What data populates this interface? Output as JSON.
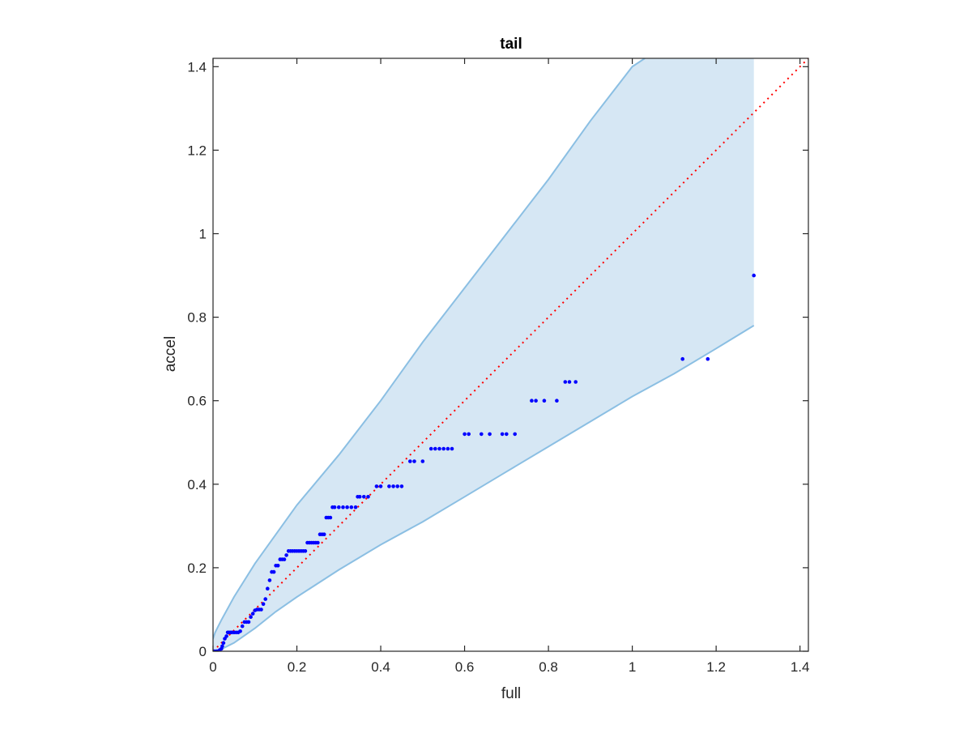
{
  "chart_data": {
    "type": "scatter",
    "title": "tail",
    "xlabel": "full",
    "ylabel": "accel",
    "xlim": [
      0,
      1.42
    ],
    "ylim": [
      0,
      1.42
    ],
    "xticks": [
      0,
      0.2,
      0.4,
      0.6,
      0.8,
      1,
      1.2,
      1.4
    ],
    "yticks": [
      0,
      0.2,
      0.4,
      0.6,
      0.8,
      1,
      1.2,
      1.4
    ],
    "xtick_labels": [
      "0",
      "0.2",
      "0.4",
      "0.6",
      "0.8",
      "1",
      "1.2",
      "1.4"
    ],
    "ytick_labels": [
      "0",
      "0.2",
      "0.4",
      "0.6",
      "0.8",
      "1",
      "1.2",
      "1.4"
    ],
    "grid": false,
    "reference_line": {
      "style": "dotted",
      "color": "#ff0000",
      "x": [
        0,
        1.42
      ],
      "y": [
        0,
        1.42
      ]
    },
    "confidence_band": {
      "fill_color": "#d6e7f4",
      "edge_color": "#8bbfe3",
      "upper": {
        "x": [
          0,
          0.005,
          0.01,
          0.02,
          0.05,
          0.1,
          0.15,
          0.2,
          0.3,
          0.4,
          0.5,
          0.6,
          0.7,
          0.8,
          0.9,
          1.0,
          1.03
        ],
        "y": [
          0.03,
          0.045,
          0.055,
          0.075,
          0.13,
          0.21,
          0.28,
          0.35,
          0.47,
          0.6,
          0.74,
          0.87,
          1.0,
          1.13,
          1.27,
          1.4,
          1.42
        ]
      },
      "right_edge_x": 1.29,
      "lower": {
        "x": [
          0,
          0.02,
          0.05,
          0.1,
          0.15,
          0.2,
          0.3,
          0.4,
          0.5,
          0.6,
          0.7,
          0.8,
          0.9,
          1.0,
          1.1,
          1.2,
          1.29
        ],
        "y": [
          0,
          0.005,
          0.02,
          0.055,
          0.095,
          0.13,
          0.195,
          0.255,
          0.31,
          0.37,
          0.43,
          0.49,
          0.55,
          0.61,
          0.665,
          0.725,
          0.78
        ]
      }
    },
    "series": [
      {
        "marker_color": "#0000ff",
        "x": [
          0.003,
          0.008,
          0.012,
          0.016,
          0.02,
          0.022,
          0.025,
          0.028,
          0.032,
          0.035,
          0.038,
          0.042,
          0.045,
          0.05,
          0.055,
          0.06,
          0.065,
          0.07,
          0.075,
          0.08,
          0.085,
          0.09,
          0.095,
          0.1,
          0.105,
          0.11,
          0.115,
          0.12,
          0.125,
          0.13,
          0.135,
          0.14,
          0.145,
          0.15,
          0.155,
          0.16,
          0.165,
          0.17,
          0.175,
          0.18,
          0.185,
          0.19,
          0.195,
          0.2,
          0.205,
          0.21,
          0.215,
          0.22,
          0.225,
          0.23,
          0.235,
          0.24,
          0.245,
          0.25,
          0.255,
          0.26,
          0.265,
          0.27,
          0.275,
          0.28,
          0.285,
          0.29,
          0.3,
          0.31,
          0.32,
          0.33,
          0.34,
          0.345,
          0.35,
          0.36,
          0.37,
          0.39,
          0.4,
          0.42,
          0.43,
          0.44,
          0.45,
          0.47,
          0.48,
          0.5,
          0.52,
          0.53,
          0.54,
          0.55,
          0.56,
          0.57,
          0.6,
          0.61,
          0.64,
          0.66,
          0.69,
          0.7,
          0.72,
          0.76,
          0.77,
          0.79,
          0.82,
          0.84,
          0.85,
          0.865,
          1.12,
          1.18,
          1.29
        ],
        "y": [
          0.0,
          0.0,
          0.0,
          0.003,
          0.006,
          0.012,
          0.02,
          0.03,
          0.036,
          0.045,
          0.045,
          0.045,
          0.045,
          0.045,
          0.045,
          0.045,
          0.048,
          0.06,
          0.07,
          0.07,
          0.07,
          0.082,
          0.09,
          0.098,
          0.1,
          0.1,
          0.1,
          0.113,
          0.125,
          0.15,
          0.17,
          0.19,
          0.19,
          0.205,
          0.205,
          0.22,
          0.22,
          0.22,
          0.23,
          0.24,
          0.24,
          0.24,
          0.24,
          0.24,
          0.24,
          0.24,
          0.24,
          0.24,
          0.26,
          0.26,
          0.26,
          0.26,
          0.26,
          0.26,
          0.28,
          0.28,
          0.28,
          0.32,
          0.32,
          0.32,
          0.345,
          0.345,
          0.345,
          0.345,
          0.345,
          0.345,
          0.345,
          0.37,
          0.37,
          0.37,
          0.37,
          0.395,
          0.395,
          0.395,
          0.395,
          0.395,
          0.395,
          0.455,
          0.455,
          0.455,
          0.485,
          0.485,
          0.485,
          0.485,
          0.485,
          0.485,
          0.52,
          0.52,
          0.52,
          0.52,
          0.52,
          0.52,
          0.52,
          0.6,
          0.6,
          0.6,
          0.6,
          0.645,
          0.645,
          0.645,
          0.7,
          0.7,
          0.9
        ]
      }
    ]
  }
}
